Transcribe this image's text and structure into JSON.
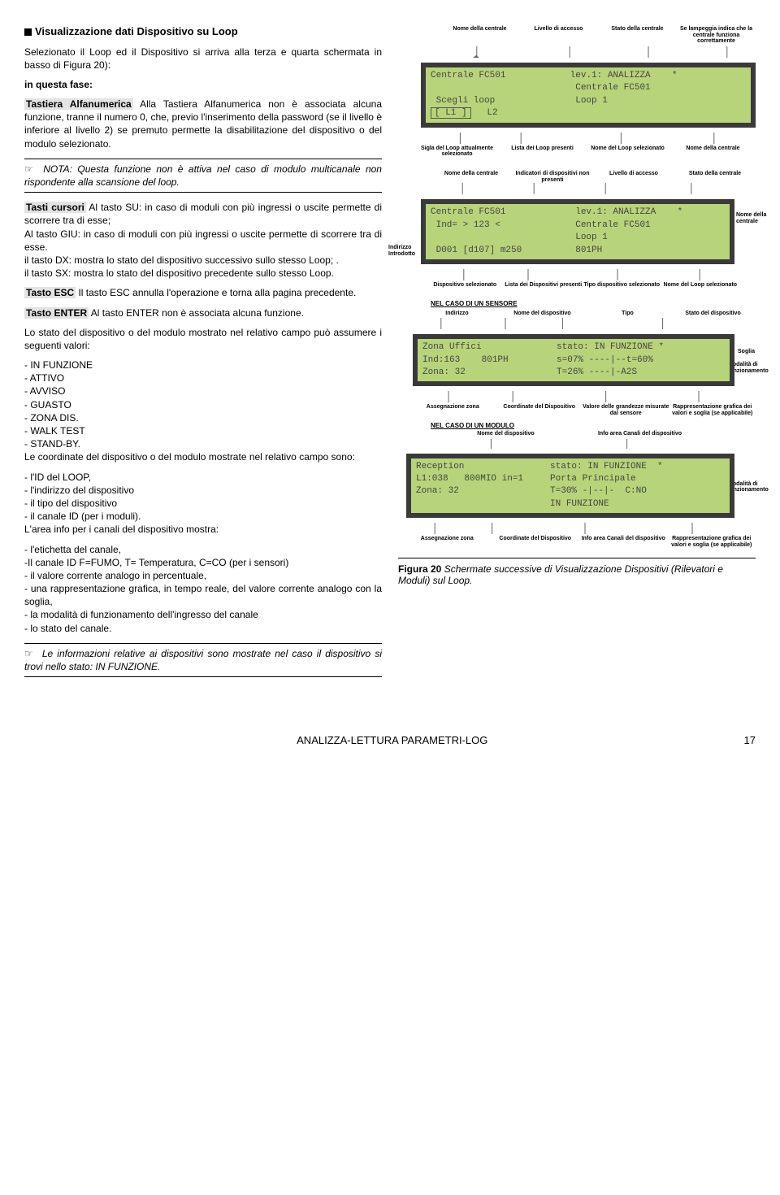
{
  "heading": "Visualizzazione dati Dispositivo su Loop",
  "intro1": "Selezionato il Loop ed il Dispositivo si arriva alla terza e quarta schermata in basso di Figura 20):",
  "intro2": "in questa fase:",
  "p_tast": "Alla Tastiera Alfanumerica non è associata alcuna funzione, tranne il numero 0, che, previo l'inserimento della password (se il livello è inferiore al livello 2) se premuto permette la disabilitazione del dispositivo o del modulo selezionato.",
  "lbl_tast": "Tastiera Alfanumerica",
  "note1": "NOTA: Questa funzione non è attiva nel caso di modulo multicanale non rispondente alla scansione del loop.",
  "lbl_curs": "Tasti cursori",
  "p_curs": "Al tasto SU: in caso di moduli con più ingressi o uscite permette di scorrere tra di esse;\nAl tasto GIU: in caso di moduli con più ingressi o uscite permette di scorrere tra di esse.\nil tasto DX: mostra lo stato del dispositivo successivo sullo stesso Loop; .\nil tasto SX: mostra lo stato del dispositivo precedente sullo stesso Loop.",
  "lbl_esc": "Tasto ESC",
  "p_esc": "Il tasto ESC annulla l'operazione e torna alla pagina precedente.",
  "lbl_ent": "Tasto ENTER",
  "p_ent": "Al tasto ENTER non è associata alcuna funzione.",
  "p_stato1": "Lo stato del dispositivo o del modulo mostrato nel relativo campo può assumere i seguenti valori:",
  "states": [
    "- IN FUNZIONE",
    "- ATTIVO",
    "- AVVISO",
    "- GUASTO",
    "- ZONA DIS.",
    "- WALK TEST",
    "- STAND-BY."
  ],
  "p_stato2": "Le coordinate del dispositivo o del modulo mostrate nel relativo campo sono:",
  "coords": [
    "- l'ID del LOOP,",
    "- l'indirizzo del dispositivo",
    "- il tipo del dispositivo",
    "- il canale ID (per i moduli)."
  ],
  "p_stato3": "L'area info per i canali del dispositivo mostra:",
  "infos": [
    "- l'etichetta del canale,",
    "-Il canale ID F=FUMO, T= Temperatura, C=CO (per i sensori)",
    "- il valore corrente analogo in percentuale,",
    "- una rappresentazione grafica, in tempo reale, del valore corrente analogo con la soglia,",
    "- la modalità di funzionamento dell'ingresso del canale",
    "- lo stato del canale."
  ],
  "note2": "Le informazioni relative ai dispositivi sono mostrate nel caso il dispositivo si trovi nello stato: IN FUNZIONE.",
  "top_calls": [
    "Nome della centrale",
    "Livello di accesso",
    "Stato della centrale",
    "Se lampeggia indica che la centrale funziona correttamente"
  ],
  "lcd1": {
    "r1": "Centrale FC501            lev.1: ANALIZZA    *",
    "r2": "                           Centrale FC501",
    "r3": " Scegli loop               Loop 1",
    "r4": " [ L1 ]   L2"
  },
  "under1": [
    "Sigla del Loop attualmente selezionato",
    "Lista dei Loop presenti",
    "Nome del Loop selezionato",
    "Nome della centrale"
  ],
  "mid_calls": [
    "Nome della centrale",
    "Indicatori di dispositivi non presenti",
    "Livello di accesso",
    "Stato della centrale"
  ],
  "lcd2": {
    "r1": "Centrale FC501             lev.1: ANALIZZA    *",
    "r2": " Ind= > 123 <              Centrale FC501",
    "r3": "                           Loop 1",
    "r4": " D001 [d107] m250          801PH"
  },
  "side_l2": "Indirizzo Introdotto",
  "side_r2": "Nome della centrale",
  "under2": [
    "Dispositivo selezionato",
    "Lista dei Dispositivi presenti",
    "Tipo dispositivo selezionato",
    "Nome del Loop selezionato"
  ],
  "sec_sens": "NEL CASO DI UN SENSORE",
  "sens_calls": [
    "Indirizzo",
    "Nome del dispositivo",
    "Tipo",
    "Stato del dispositivo"
  ],
  "lcd3": {
    "r1": "Zona Uffici              stato: IN FUNZIONE *",
    "r2": "Ind:163    801PH         s=07% ----|--t=60%",
    "r3": "Zona: 32                 T=26% ----|-A2S"
  },
  "side_r3a": "Soglia",
  "side_r3b": "Modalità di funzionamento",
  "under3": [
    "Assegnazione zona",
    "Coordinate del Dispositivo",
    "Valore delle grandezze misurate dal sensore",
    "Rappresentazione grafica dei valori e soglia (se applicabile)"
  ],
  "sec_mod": "NEL CASO DI UN MODULO",
  "mod_calls": [
    "Nome del dispositivo",
    "Info area Canali del dispositivo"
  ],
  "lcd4": {
    "r1": "Reception                stato: IN FUNZIONE  *",
    "r2": "L1:038   800MIO in=1     Porta Principale",
    "r3": "Zona: 32                 T=30% -|--|-  C:NO",
    "r4": "                         IN FUNZIONE"
  },
  "side_r4": "Modalità di funzionamento",
  "under4": [
    "Assegnazione zona",
    "Coordinate del Dispositivo",
    "Info area Canali del dispositivo",
    "Rappresentazione grafica dei valori e soglia (se applicabile)"
  ],
  "figcap": "Schermate successive di Visualizzazione Dispositivi (Rilevatori e Moduli) sul Loop.",
  "fignum": "Figura 20",
  "footer_mid": "ANALIZZA-LETTURA PARAMETRI-LOG",
  "footer_pg": "17",
  "icon_hand": "☞"
}
